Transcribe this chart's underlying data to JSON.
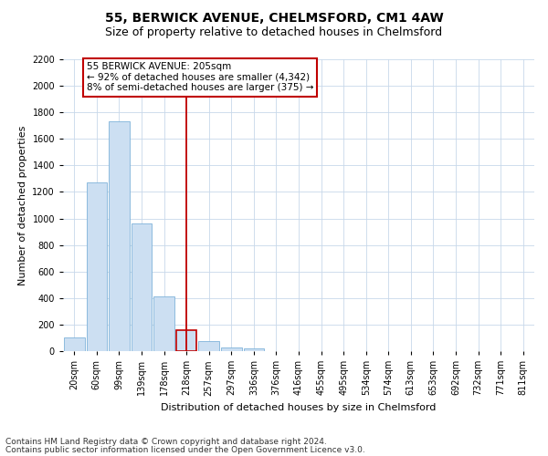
{
  "title": "55, BERWICK AVENUE, CHELMSFORD, CM1 4AW",
  "subtitle": "Size of property relative to detached houses in Chelmsford",
  "xlabel": "Distribution of detached houses by size in Chelmsford",
  "ylabel": "Number of detached properties",
  "categories": [
    "20sqm",
    "60sqm",
    "99sqm",
    "139sqm",
    "178sqm",
    "218sqm",
    "257sqm",
    "297sqm",
    "336sqm",
    "376sqm",
    "416sqm",
    "455sqm",
    "495sqm",
    "534sqm",
    "574sqm",
    "613sqm",
    "653sqm",
    "692sqm",
    "732sqm",
    "771sqm",
    "811sqm"
  ],
  "values": [
    100,
    1270,
    1730,
    960,
    415,
    155,
    75,
    30,
    20,
    0,
    0,
    0,
    0,
    0,
    0,
    0,
    0,
    0,
    0,
    0,
    0
  ],
  "bar_color": "#ccdff2",
  "bar_edge_color": "#7fb3d9",
  "highlight_bar_index": 5,
  "highlight_bar_edge_color": "#c00000",
  "vline_x_index": 5,
  "vline_color": "#c00000",
  "annotation_text": "55 BERWICK AVENUE: 205sqm\n← 92% of detached houses are smaller (4,342)\n8% of semi-detached houses are larger (375) →",
  "annotation_box_edge_color": "#c00000",
  "ylim": [
    0,
    2200
  ],
  "yticks": [
    0,
    200,
    400,
    600,
    800,
    1000,
    1200,
    1400,
    1600,
    1800,
    2000,
    2200
  ],
  "footnote1": "Contains HM Land Registry data © Crown copyright and database right 2024.",
  "footnote2": "Contains public sector information licensed under the Open Government Licence v3.0.",
  "bg_color": "#ffffff",
  "grid_color": "#c8d8ea",
  "title_fontsize": 10,
  "subtitle_fontsize": 9,
  "axis_label_fontsize": 8,
  "tick_fontsize": 7,
  "annotation_fontsize": 7.5,
  "footnote_fontsize": 6.5
}
